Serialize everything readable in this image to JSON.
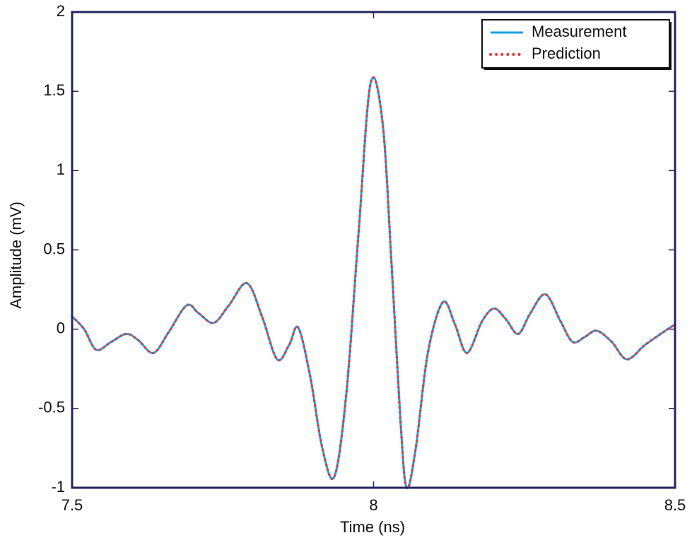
{
  "chart_data": {
    "type": "line",
    "x_label": "Time (ns)",
    "y_label": "Amplitude (mV)",
    "x": [
      7.5,
      7.52,
      7.54,
      7.565,
      7.59,
      7.61,
      7.635,
      7.66,
      7.69,
      7.71,
      7.735,
      7.76,
      7.79,
      7.815,
      7.84,
      7.86,
      7.875,
      7.895,
      7.915,
      7.935,
      7.955,
      7.975,
      7.995,
      8.015,
      8.03,
      8.045,
      8.055,
      8.07,
      8.09,
      8.115,
      8.135,
      8.155,
      8.18,
      8.2,
      8.22,
      8.24,
      8.26,
      8.285,
      8.31,
      8.33,
      8.35,
      8.37,
      8.395,
      8.42,
      8.45,
      8.48,
      8.5
    ],
    "series": [
      {
        "name": "Measurement",
        "color": "#1ba1e2",
        "dash": "solid",
        "values": [
          0.08,
          0.0,
          -0.13,
          -0.08,
          -0.03,
          -0.07,
          -0.15,
          -0.02,
          0.15,
          0.1,
          0.04,
          0.15,
          0.29,
          0.08,
          -0.19,
          -0.1,
          0.01,
          -0.3,
          -0.75,
          -0.93,
          -0.4,
          0.6,
          1.55,
          1.3,
          0.4,
          -0.6,
          -1.0,
          -0.75,
          -0.15,
          0.17,
          0.03,
          -0.15,
          0.05,
          0.13,
          0.06,
          -0.03,
          0.1,
          0.22,
          0.05,
          -0.08,
          -0.05,
          -0.01,
          -0.08,
          -0.19,
          -0.1,
          -0.02,
          0.03
        ]
      },
      {
        "name": "Prediction",
        "color": "#e8383d",
        "dash": "dotted",
        "values": [
          0.08,
          0.0,
          -0.13,
          -0.08,
          -0.03,
          -0.07,
          -0.15,
          -0.02,
          0.15,
          0.1,
          0.04,
          0.15,
          0.29,
          0.08,
          -0.19,
          -0.1,
          0.01,
          -0.3,
          -0.75,
          -0.93,
          -0.4,
          0.6,
          1.55,
          1.3,
          0.4,
          -0.6,
          -1.0,
          -0.75,
          -0.15,
          0.17,
          0.03,
          -0.15,
          0.05,
          0.13,
          0.06,
          -0.03,
          0.1,
          0.22,
          0.05,
          -0.08,
          -0.05,
          -0.01,
          -0.08,
          -0.19,
          -0.1,
          -0.02,
          0.03
        ]
      }
    ],
    "xlim": [
      7.5,
      8.5
    ],
    "xticks": [
      7.5,
      8,
      8.5
    ],
    "ylim": [
      -1,
      2
    ],
    "yticks": [
      -1,
      -0.5,
      0,
      0.5,
      1,
      1.5,
      2
    ],
    "grid": false,
    "legend": "upper right"
  }
}
